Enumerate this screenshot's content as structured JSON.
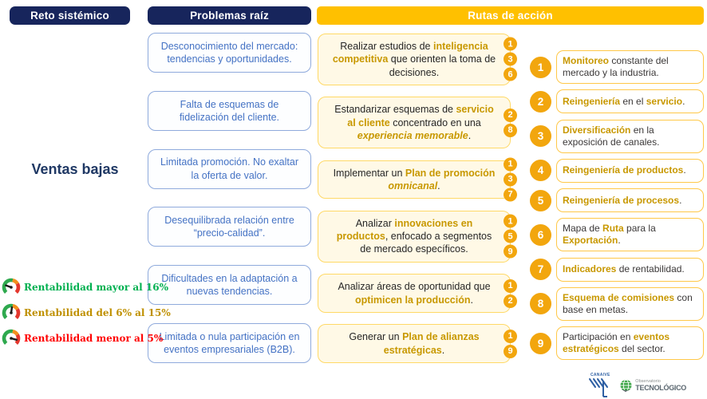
{
  "headers": {
    "reto": "Reto sistémico",
    "problemas": "Problemas raíz",
    "rutas": "Rutas de acción"
  },
  "challenge": "Ventas bajas",
  "problems": [
    {
      "text": "Desconocimiento del mercado: tendencias y oportunidades."
    },
    {
      "text": "Falta de esquemas de fidelización del cliente."
    },
    {
      "text": "Limitada promoción. No exaltar la oferta de valor."
    },
    {
      "text": "Desequilibrada relación entre “precio-calidad”."
    },
    {
      "text": "Dificultades en la adaptación a nuevas tendencias."
    },
    {
      "text": "Limitada o nula participación en eventos empresariales (B2B)."
    }
  ],
  "actions": [
    {
      "badges": [
        1,
        3,
        6
      ],
      "segments": [
        {
          "t": "Realizar estudios de ",
          "s": "p"
        },
        {
          "t": "inteligencia competitiva",
          "s": "g"
        },
        {
          "t": " que orienten la toma de decisiones.",
          "s": "p"
        }
      ]
    },
    {
      "badges": [
        2,
        8
      ],
      "segments": [
        {
          "t": "Estandarizar esquemas de ",
          "s": "p"
        },
        {
          "t": "servicio al cliente",
          "s": "g"
        },
        {
          "t": " concentrado en una ",
          "s": "p"
        },
        {
          "t": "experiencia memorable",
          "s": "gi"
        },
        {
          "t": ".",
          "s": "p"
        }
      ]
    },
    {
      "badges": [
        1,
        3,
        7
      ],
      "segments": [
        {
          "t": "Implementar un ",
          "s": "p"
        },
        {
          "t": "Plan de promoción ",
          "s": "g"
        },
        {
          "t": "omnicanal",
          "s": "gi"
        },
        {
          "t": ".",
          "s": "p"
        }
      ]
    },
    {
      "badges": [
        1,
        5,
        9
      ],
      "segments": [
        {
          "t": "Analizar ",
          "s": "p"
        },
        {
          "t": "innovaciones en productos",
          "s": "g"
        },
        {
          "t": ", enfocado a segmentos de mercado específicos.",
          "s": "p"
        }
      ]
    },
    {
      "badges": [
        1,
        2
      ],
      "segments": [
        {
          "t": "Analizar áreas de oportunidad que ",
          "s": "p"
        },
        {
          "t": "optimicen la producción",
          "s": "g"
        },
        {
          "t": ".",
          "s": "p"
        }
      ]
    },
    {
      "badges": [
        1,
        9
      ],
      "segments": [
        {
          "t": "Generar un ",
          "s": "p"
        },
        {
          "t": "Plan de alianzas estratégicas",
          "s": "g"
        },
        {
          "t": ".",
          "s": "p"
        }
      ]
    }
  ],
  "routes": [
    {
      "num": "1",
      "segments": [
        {
          "t": "Monitoreo",
          "s": "g"
        },
        {
          "t": " constante del mercado y la industria.",
          "s": "p"
        }
      ]
    },
    {
      "num": "2",
      "segments": [
        {
          "t": "Reingeniería",
          "s": "g"
        },
        {
          "t": " en el ",
          "s": "p"
        },
        {
          "t": "servicio",
          "s": "g"
        },
        {
          "t": ".",
          "s": "p"
        }
      ]
    },
    {
      "num": "3",
      "segments": [
        {
          "t": "Diversificación",
          "s": "g"
        },
        {
          "t": " en la exposición de canales.",
          "s": "p"
        }
      ]
    },
    {
      "num": "4",
      "segments": [
        {
          "t": "Reingeniería de productos",
          "s": "g"
        },
        {
          "t": ".",
          "s": "p"
        }
      ]
    },
    {
      "num": "5",
      "segments": [
        {
          "t": "Reingeniería de procesos",
          "s": "g"
        },
        {
          "t": ".",
          "s": "p"
        }
      ]
    },
    {
      "num": "6",
      "segments": [
        {
          "t": "Mapa de ",
          "s": "p"
        },
        {
          "t": "Ruta",
          "s": "g"
        },
        {
          "t": " para la ",
          "s": "p"
        },
        {
          "t": "Exportación",
          "s": "g"
        },
        {
          "t": ".",
          "s": "p"
        }
      ]
    },
    {
      "num": "7",
      "segments": [
        {
          "t": "Indicadores",
          "s": "g"
        },
        {
          "t": " de rentabilidad.",
          "s": "p"
        }
      ]
    },
    {
      "num": "8",
      "segments": [
        {
          "t": "Esquema de comisiones",
          "s": "g"
        },
        {
          "t": " con base en metas.",
          "s": "p"
        }
      ]
    },
    {
      "num": "9",
      "segments": [
        {
          "t": "Participación en ",
          "s": "p"
        },
        {
          "t": "eventos estratégicos",
          "s": "g"
        },
        {
          "t": " del sector.",
          "s": "p"
        }
      ]
    }
  ],
  "legend": [
    {
      "icon": "gauge-needle-green-icon",
      "label": "Rentabilidad mayor al 16%",
      "color": "#00B050"
    },
    {
      "icon": "gauge-needle-mid-icon",
      "label": "Rentabilidad del 6% al 15%",
      "color": "#BF9000"
    },
    {
      "icon": "gauge-needle-red-icon",
      "label": "Rentabilidad menor al 5%",
      "color": "#FF0000"
    }
  ],
  "logos": {
    "canaive": "CANAIVE",
    "observatorio_line1": "Observatorio",
    "observatorio_line2": "TECNOLÓGICO"
  },
  "colors": {
    "navy": "#17255C",
    "header_yellow": "#FFC000",
    "problem_blue_text": "#4472C4",
    "problem_border": "#8FAADC",
    "action_border": "#FFD966",
    "action_fill": "#FFF9E6",
    "gold_text": "#C89800",
    "amber_circle": "#F2A60E",
    "route_border": "#FFC848",
    "legend_green": "#00B050",
    "legend_gold": "#BF9000",
    "legend_red": "#FF0000"
  }
}
